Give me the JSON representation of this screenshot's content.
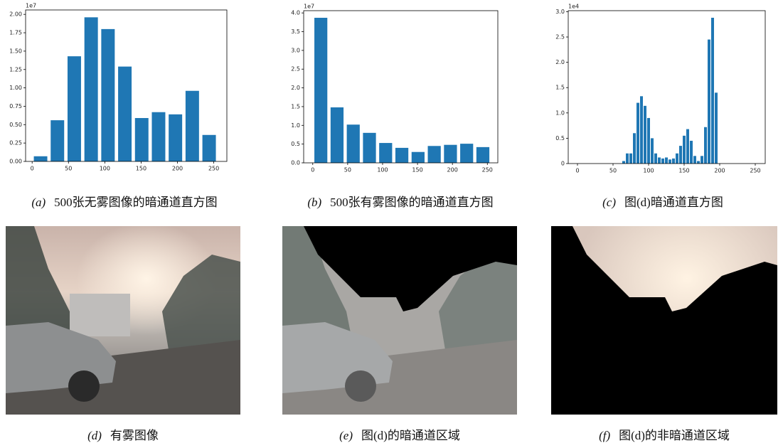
{
  "chart_data": [
    {
      "type": "bar",
      "scale_label": "1e7",
      "color": "#1f77b4",
      "x": [
        11.6,
        34.8,
        58.0,
        81.2,
        104.4,
        127.6,
        150.8,
        174.0,
        197.2,
        220.4,
        243.6
      ],
      "values": [
        0.07,
        0.56,
        1.43,
        1.96,
        1.8,
        1.29,
        0.59,
        0.67,
        0.64,
        0.96,
        0.36
      ],
      "xlim": [
        -9,
        268
      ],
      "xticks": [
        0,
        50,
        100,
        150,
        200,
        250
      ],
      "ylim": [
        0,
        2.06
      ],
      "yticks": [
        {
          "value": 0,
          "label": "0.00"
        },
        {
          "value": 0.25,
          "label": "0.25"
        },
        {
          "value": 0.5,
          "label": "0.50"
        },
        {
          "value": 0.75,
          "label": "0.75"
        },
        {
          "value": 1,
          "label": "1.00"
        },
        {
          "value": 1.25,
          "label": "1.25"
        },
        {
          "value": 1.5,
          "label": "1.50"
        },
        {
          "value": 1.75,
          "label": "1.75"
        },
        {
          "value": 2,
          "label": "2.00"
        }
      ],
      "caption_label": "(a)",
      "caption": "500张无雾图像的暗通道直方图"
    },
    {
      "type": "bar",
      "scale_label": "1e7",
      "color": "#1f77b4",
      "x": [
        11.6,
        34.8,
        58.0,
        81.2,
        104.4,
        127.6,
        150.8,
        174.0,
        197.2,
        220.4,
        243.6
      ],
      "values": [
        3.87,
        1.48,
        1.02,
        0.8,
        0.53,
        0.4,
        0.29,
        0.45,
        0.48,
        0.51,
        0.42
      ],
      "xlim": [
        -13,
        265
      ],
      "xticks": [
        0,
        50,
        100,
        150,
        200,
        250
      ],
      "ylim": [
        0,
        4.06
      ],
      "yticks": [
        {
          "value": 0,
          "label": "0.0"
        },
        {
          "value": 0.5,
          "label": "0.5"
        },
        {
          "value": 1,
          "label": "1.0"
        },
        {
          "value": 1.5,
          "label": "1.5"
        },
        {
          "value": 2,
          "label": "2.0"
        },
        {
          "value": 2.5,
          "label": "2.5"
        },
        {
          "value": 3,
          "label": "3.0"
        },
        {
          "value": 3.5,
          "label": "3.5"
        },
        {
          "value": 4,
          "label": "4.0"
        }
      ],
      "caption_label": "(b)",
      "caption": "500张有雾图像的暗通道直方图"
    },
    {
      "type": "bar",
      "scale_label": "1e4",
      "color": "#1f77b4",
      "x": [
        65,
        70,
        75,
        80,
        85,
        90,
        95,
        100,
        105,
        110,
        115,
        120,
        125,
        130,
        135,
        140,
        145,
        150,
        155,
        160,
        165,
        170,
        175,
        180,
        185,
        190,
        195,
        200
      ],
      "values": [
        0.05,
        0.2,
        0.2,
        0.6,
        1.2,
        1.33,
        1.14,
        0.9,
        0.5,
        0.2,
        0.12,
        0.1,
        0.12,
        0.08,
        0.1,
        0.2,
        0.35,
        0.55,
        0.68,
        0.45,
        0.15,
        0.05,
        0.15,
        0.72,
        2.45,
        2.88,
        1.4,
        0
      ],
      "xlim": [
        -13,
        264
      ],
      "xticks": [
        0,
        50,
        100,
        150,
        200,
        250
      ],
      "ylim": [
        0,
        3.02
      ],
      "yticks": [
        {
          "value": 0,
          "label": "0"
        },
        {
          "value": 0.5,
          "label": "0.5"
        },
        {
          "value": 1,
          "label": "1.0"
        },
        {
          "value": 1.5,
          "label": "1.5"
        },
        {
          "value": 2,
          "label": "2.0"
        },
        {
          "value": 2.5,
          "label": "2.5"
        },
        {
          "value": 3,
          "label": "3.0"
        }
      ],
      "caption_label": "(c)",
      "caption": "图(d)暗通道直方图"
    }
  ],
  "images": [
    {
      "label": "(d)",
      "caption": "有雾图像"
    },
    {
      "label": "(e)",
      "caption": "图(d)的暗通道区域"
    },
    {
      "label": "(f)",
      "caption": "图(d)的非暗通道区域"
    }
  ]
}
